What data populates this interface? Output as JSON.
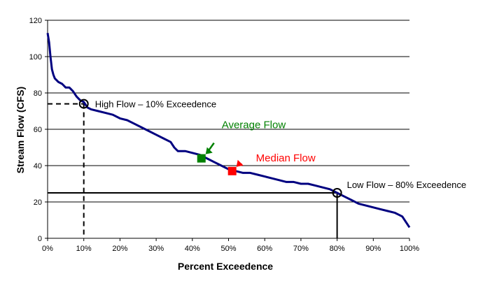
{
  "chart_data": {
    "type": "line",
    "xlabel": "Percent Exceedence",
    "ylabel": "Stream Flow (CFS)",
    "xlim": [
      0,
      100
    ],
    "ylim": [
      0,
      120
    ],
    "x_ticks": [
      "0%",
      "10%",
      "20%",
      "30%",
      "40%",
      "50%",
      "60%",
      "70%",
      "80%",
      "90%",
      "100%"
    ],
    "y_ticks": [
      "0",
      "20",
      "40",
      "60",
      "80",
      "100",
      "120"
    ],
    "grid": "horizontal",
    "line_color": "#000080",
    "series": [
      {
        "x": [
          0,
          0.4,
          0.8,
          1.2,
          1.6,
          2,
          2.5,
          3,
          4,
          5,
          6,
          7,
          8,
          9,
          10,
          11,
          12,
          14,
          16,
          18,
          20,
          22,
          24,
          26,
          28,
          30,
          32,
          34,
          35,
          36,
          38,
          40,
          42,
          44,
          46,
          48,
          50,
          52,
          54,
          56,
          58,
          60,
          62,
          64,
          66,
          68,
          70,
          72,
          74,
          76,
          78,
          80,
          82,
          84,
          86,
          88,
          90,
          92,
          94,
          96,
          97,
          98,
          99,
          100
        ],
        "y": [
          113,
          108,
          100,
          93,
          90,
          88,
          87,
          86,
          85,
          83,
          83,
          81,
          78,
          76,
          75,
          72,
          71,
          70,
          69,
          68,
          66,
          65,
          63,
          61,
          59,
          57,
          55,
          53,
          50,
          48,
          48,
          47,
          46,
          44,
          42,
          40,
          38,
          37,
          36,
          36,
          35,
          34,
          33,
          32,
          31,
          31,
          30,
          30,
          29,
          28,
          27,
          25,
          23,
          21,
          19,
          18,
          17,
          16,
          15,
          14,
          13,
          12,
          9,
          6
        ]
      }
    ],
    "markers": [
      {
        "label": "Average Flow",
        "x": 42.5,
        "y": 44,
        "color": "#008000",
        "shape": "square"
      },
      {
        "label": "Median Flow",
        "x": 51,
        "y": 37,
        "color": "#ff0000",
        "shape": "square"
      }
    ],
    "annotations": [
      {
        "label": "High Flow – 10% Exceedence",
        "x": 10,
        "y": 74,
        "style": "dashed"
      },
      {
        "label": "Low Flow – 80% Exceedence",
        "x": 80,
        "y": 25,
        "style": "solid"
      }
    ]
  }
}
